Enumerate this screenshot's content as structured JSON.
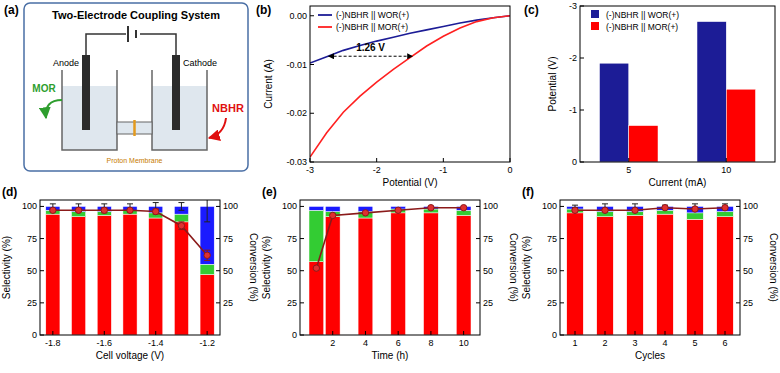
{
  "diagram": {
    "label": "(a)",
    "title": "Two-Electrode Coupling System",
    "anode": "Anode",
    "cathode": "Cathode",
    "anode_reaction": "MOR",
    "cathode_reaction": "NBHR",
    "membrane": "Proton Membrane"
  },
  "chart_data": [
    {
      "type": "line",
      "title": "(b)",
      "x_label": "Potential (V)",
      "y_label": "Current (A)",
      "x": [
        -3,
        -2.75,
        -2.5,
        -2.25,
        -2,
        -1.75,
        -1.5,
        -1.25,
        -1,
        -0.75,
        -0.5,
        -0.25,
        0
      ],
      "series": [
        {
          "name": "(-)NBHR || WOR(+)",
          "color": "#1c1c96",
          "values": [
            -0.0097,
            -0.0084,
            -0.0071,
            -0.0061,
            -0.0052,
            -0.0044,
            -0.0036,
            -0.0029,
            -0.0022,
            -0.0015,
            -0.0009,
            -0.0004,
            0
          ]
        },
        {
          "name": "(-)NBHR || MOR(+)",
          "color": "#ff2020",
          "values": [
            -0.029,
            -0.024,
            -0.0198,
            -0.0165,
            -0.0136,
            -0.011,
            -0.0086,
            -0.0062,
            -0.0042,
            -0.0025,
            -0.0012,
            -0.0004,
            0
          ]
        }
      ],
      "xlim": [
        -3,
        0
      ],
      "xticks": [
        -3,
        -2,
        -1,
        0
      ],
      "ylim": [
        -0.03,
        0.002
      ],
      "yticks": [
        {
          "value": 0,
          "label": "0.00"
        },
        -0.01,
        -0.02,
        -0.03
      ],
      "legend": "upper left",
      "annotation": "1.26 V"
    },
    {
      "type": "bar",
      "title": "(c)",
      "x_label": "Current (mA)",
      "y_label": "Potential (V)",
      "categories": [
        "5",
        "10"
      ],
      "series": [
        {
          "name": "(-)NBHR || WOR(+)",
          "color": "#1c1c96",
          "values": [
            -1.9,
            -2.7
          ]
        },
        {
          "name": "(-)NBHR || MOR(+)",
          "color": "#ff0000",
          "values": [
            -0.7,
            -1.4
          ]
        }
      ],
      "ylim": [
        0,
        -3
      ],
      "yticks": [
        0,
        -1,
        -2,
        -3
      ],
      "legend": "upper left"
    },
    {
      "type": "bar",
      "stacked": true,
      "title": "(d)",
      "x_label": "Cell voltage (V)",
      "y_label": "Selectivity (%)",
      "y2_label": "Conversion (%)",
      "categories": [
        "-1.8",
        null,
        "-1.6",
        null,
        "-1.4",
        null,
        "-1.2"
      ],
      "series": [
        {
          "color": "#ff0000",
          "values": [
            94,
            92,
            93,
            94,
            91,
            88,
            47
          ]
        },
        {
          "color": "#33cc33",
          "values": [
            3,
            4,
            3,
            3,
            4,
            6,
            8
          ]
        },
        {
          "color": "#1a1aff",
          "values": [
            3,
            4,
            4,
            3,
            5,
            6,
            45
          ],
          "errors": [
            2,
            2,
            2,
            2,
            3,
            3,
            12
          ]
        },
        {
          "type": "line",
          "axis": "y2",
          "color": "#8b1a1a",
          "marker": "circle",
          "values": [
            97,
            97,
            97,
            97,
            96,
            85,
            62
          ],
          "errors": [
            1,
            1,
            2,
            1,
            2,
            3,
            4
          ]
        }
      ],
      "ylim": [
        0,
        105
      ],
      "yticks": [
        0,
        25,
        50,
        75,
        100
      ],
      "y2lim": [
        0,
        105
      ],
      "y2ticks": [
        25,
        50,
        75,
        100
      ]
    },
    {
      "type": "bar",
      "stacked": true,
      "title": "(e)",
      "x_label": "Time (h)",
      "y_label": "Selectivity (%)",
      "y2_label": "Conversion (%)",
      "x": [
        1,
        2,
        4,
        6,
        8,
        10
      ],
      "series": [
        {
          "color": "#ff0000",
          "values": [
            57,
            92,
            91,
            95,
            95,
            93
          ]
        },
        {
          "color": "#33cc33",
          "values": [
            40,
            4,
            5,
            3,
            3,
            4
          ]
        },
        {
          "color": "#1a1aff",
          "values": [
            3,
            4,
            4,
            2,
            2,
            3
          ]
        },
        {
          "type": "line",
          "axis": "y2",
          "color": "#8b1a1a",
          "marker": "circle",
          "values": [
            52,
            93,
            95,
            97,
            99,
            99
          ]
        }
      ],
      "xlim": [
        0,
        11
      ],
      "xticks": [
        2,
        4,
        6,
        8,
        10
      ],
      "ylim": [
        0,
        105
      ],
      "yticks": [
        0,
        25,
        50,
        75,
        100
      ],
      "y2lim": [
        0,
        105
      ],
      "y2ticks": [
        25,
        50,
        75,
        100
      ]
    },
    {
      "type": "bar",
      "stacked": true,
      "title": "(f)",
      "x_label": "Cycles",
      "y_label": "Selectivity (%)",
      "y2_label": "Conversion (%)",
      "categories": [
        "1",
        "2",
        "3",
        "4",
        "5",
        "6"
      ],
      "series": [
        {
          "color": "#ff0000",
          "values": [
            95,
            92,
            93,
            94,
            90,
            92
          ]
        },
        {
          "color": "#33cc33",
          "values": [
            3,
            4,
            3,
            3,
            5,
            4
          ]
        },
        {
          "color": "#1a1aff",
          "values": [
            2,
            4,
            4,
            3,
            5,
            4
          ],
          "errors": [
            1,
            2,
            2,
            1,
            2,
            2
          ]
        },
        {
          "type": "line",
          "axis": "y2",
          "color": "#8b1a1a",
          "marker": "circle",
          "values": [
            97,
            97,
            97,
            99,
            98,
            99
          ],
          "errors": [
            1,
            1,
            1,
            1,
            1,
            1
          ]
        }
      ],
      "ylim": [
        0,
        105
      ],
      "yticks": [
        0,
        25,
        50,
        75,
        100
      ],
      "y2lim": [
        0,
        105
      ],
      "y2ticks": [
        25,
        50,
        75,
        100
      ]
    }
  ]
}
